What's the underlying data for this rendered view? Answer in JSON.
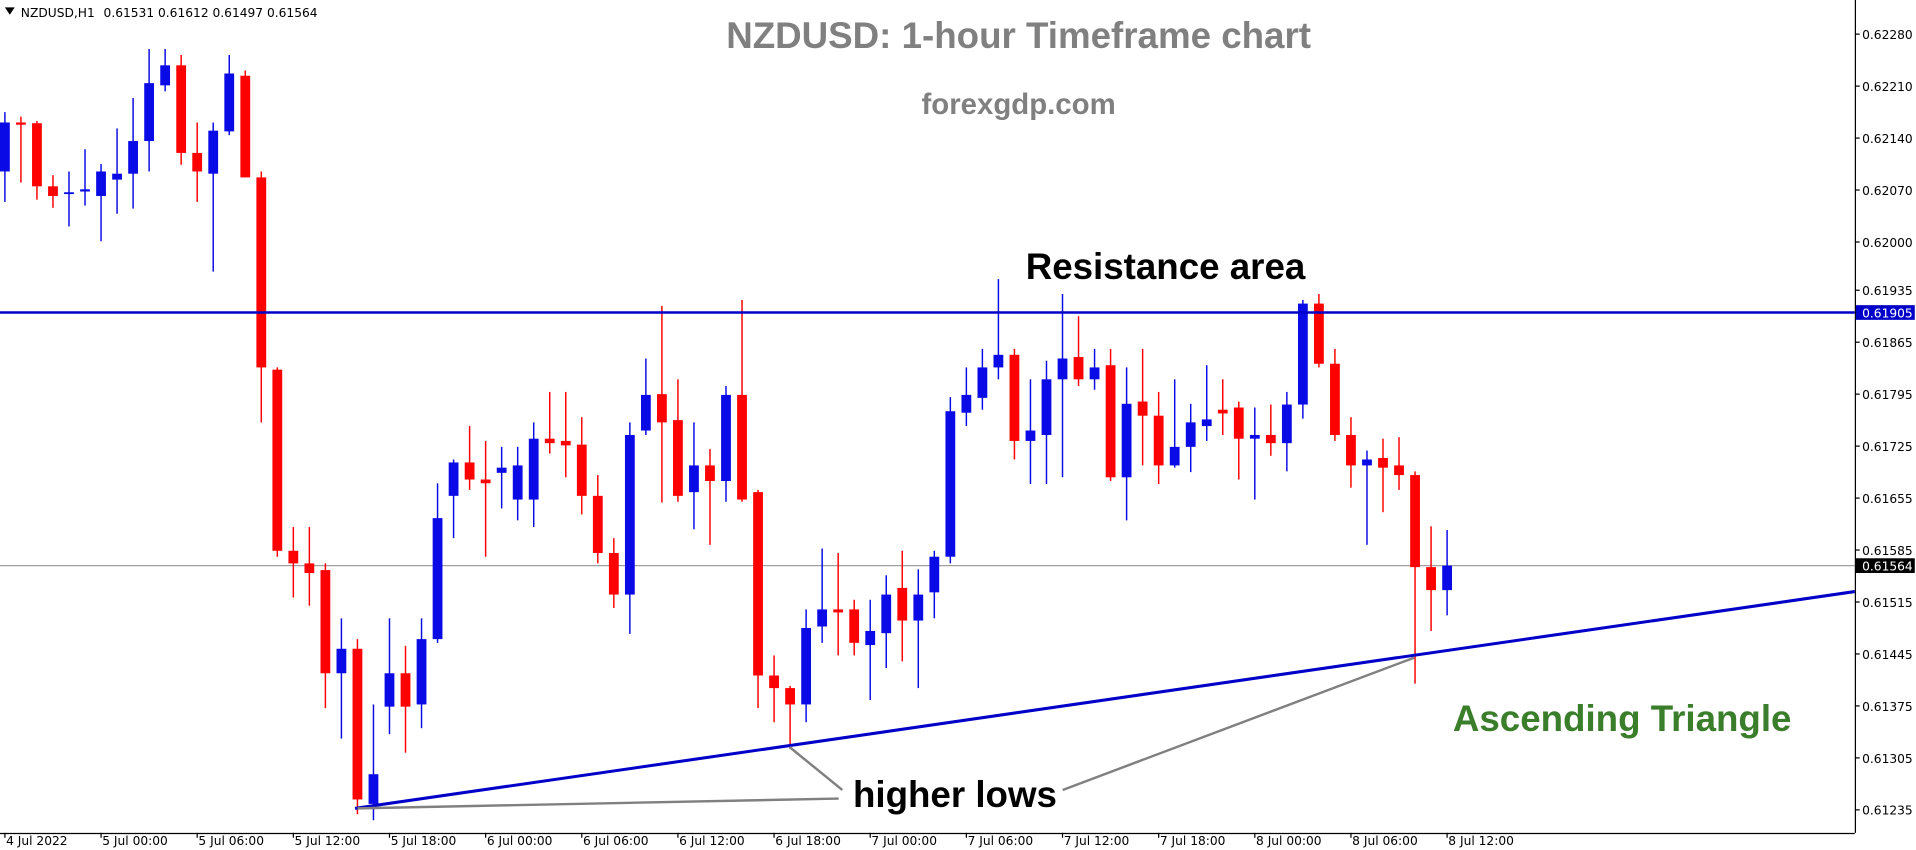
{
  "chart_data": {
    "type": "candlestick",
    "title": "NZDUSD: 1-hour Timeframe chart",
    "subtitle": "forexgdp.com",
    "symbol": "NZDUSD,H1",
    "annotations": {
      "resistance": "Resistance area",
      "lows": "higher lows",
      "pattern": "Ascending Triangle"
    },
    "up_color": "#0a0ae6",
    "down_color": "#ff0000",
    "resistance": 0.61905,
    "resistance_color": "#0000c8",
    "bid": 0.61564,
    "categories": [
      "4 Jul 2022",
      null,
      null,
      null,
      null,
      null,
      "5 Jul 00:00",
      null,
      null,
      null,
      null,
      null,
      "5 Jul 06:00",
      null,
      null,
      null,
      null,
      null,
      "5 Jul 12:00",
      null,
      null,
      null,
      null,
      null,
      "5 Jul 18:00",
      null,
      null,
      null,
      null,
      null,
      "6 Jul 00:00",
      null,
      null,
      null,
      null,
      null,
      "6 Jul 06:00",
      null,
      null,
      null,
      null,
      null,
      "6 Jul 12:00",
      null,
      null,
      null,
      null,
      null,
      "6 Jul 18:00",
      null,
      null,
      null,
      null,
      null,
      "7 Jul 00:00",
      null,
      null,
      null,
      null,
      null,
      "7 Jul 06:00",
      null,
      null,
      null,
      null,
      null,
      "7 Jul 12:00",
      null,
      null,
      null,
      null,
      null,
      "7 Jul 18:00",
      null,
      null,
      null,
      null,
      null,
      "8 Jul 00:00",
      null,
      null,
      null,
      null,
      null,
      "8 Jul 06:00",
      null,
      null,
      null,
      null,
      null,
      "8 Jul 12:00"
    ],
    "open": [
      0.62095,
      0.62161,
      0.6216,
      0.62075,
      0.62065,
      0.62068,
      0.62062,
      0.62084,
      0.62092,
      0.62136,
      0.62211,
      0.62238,
      0.6212,
      0.62092,
      0.62149,
      0.62224,
      0.62087,
      0.61828,
      0.61584,
      0.61567,
      0.61558,
      0.61419,
      0.61452,
      0.61243,
      0.61374,
      0.61419,
      0.61377,
      0.61465,
      0.61658,
      0.61703,
      0.6168,
      0.61689,
      0.61653,
      0.61653,
      0.61735,
      0.61732,
      0.61727,
      0.61658,
      0.61581,
      0.61525,
      0.61746,
      0.61795,
      0.6176,
      0.61663,
      0.61699,
      0.61678,
      0.61794,
      0.61663,
      0.61416,
      0.61399,
      0.61377,
      0.61482,
      0.61505,
      0.61505,
      0.61457,
      0.61473,
      0.61534,
      0.6149,
      0.61528,
      0.61576,
      0.6177,
      0.6179,
      0.61831,
      0.61848,
      0.61732,
      0.6174,
      0.61815,
      0.61845,
      0.61815,
      0.61834,
      0.61683,
      0.61785,
      0.61766,
      0.61699,
      0.61724,
      0.61752,
      0.61774,
      0.61777,
      0.61735,
      0.6174,
      0.61729,
      0.61781,
      0.61917,
      0.61836,
      0.6174,
      0.61699,
      0.61709,
      0.61699,
      0.61686,
      0.61562,
      0.61531
    ],
    "high": [
      0.62175,
      0.62169,
      0.62163,
      0.6209,
      0.62095,
      0.62125,
      0.62105,
      0.62153,
      0.62194,
      0.6226,
      0.6226,
      0.62252,
      0.62161,
      0.62161,
      0.62252,
      0.62231,
      0.62095,
      0.61831,
      0.61616,
      0.61616,
      0.61567,
      0.61493,
      0.61465,
      0.61377,
      0.61493,
      0.61456,
      0.61493,
      0.61675,
      0.61707,
      0.61752,
      0.61732,
      0.61724,
      0.61724,
      0.61757,
      0.61798,
      0.61798,
      0.61764,
      0.61686,
      0.61601,
      0.61757,
      0.61843,
      0.61914,
      0.61815,
      0.61757,
      0.61721,
      0.61806,
      0.61922,
      0.61666,
      0.61443,
      0.61402,
      0.61505,
      0.61587,
      0.61581,
      0.61518,
      0.61518,
      0.61551,
      0.61584,
      0.61559,
      0.61584,
      0.61791,
      0.61831,
      0.61856,
      0.6195,
      0.61856,
      0.61815,
      0.6184,
      0.6193,
      0.619,
      0.61856,
      0.61856,
      0.61831,
      0.61856,
      0.61798,
      0.61815,
      0.61782,
      0.61834,
      0.61815,
      0.61785,
      0.61777,
      0.61781,
      0.61798,
      0.61922,
      0.6193,
      0.61856,
      0.61764,
      0.61719,
      0.61735,
      0.61737,
      0.61691,
      0.61617,
      0.61612
    ],
    "low": [
      0.62054,
      0.6208,
      0.62057,
      0.62046,
      0.62021,
      0.62049,
      0.62001,
      0.62038,
      0.62045,
      0.62095,
      0.62203,
      0.62104,
      0.62054,
      0.6196,
      0.62144,
      0.62087,
      0.61757,
      0.61576,
      0.61521,
      0.6151,
      0.61372,
      0.61331,
      0.61229,
      0.61221,
      0.61337,
      0.61312,
      0.61345,
      0.6146,
      0.61601,
      0.61666,
      0.61576,
      0.61641,
      0.61625,
      0.61616,
      0.61715,
      0.61683,
      0.61633,
      0.61567,
      0.61507,
      0.61472,
      0.6174,
      0.61649,
      0.6165,
      0.61613,
      0.61592,
      0.6165,
      0.6165,
      0.61372,
      0.61353,
      0.61317,
      0.61353,
      0.6146,
      0.61443,
      0.61443,
      0.61383,
      0.61426,
      0.61435,
      0.61399,
      0.61493,
      0.61567,
      0.61752,
      0.61774,
      0.61815,
      0.61707,
      0.61674,
      0.61674,
      0.61683,
      0.61806,
      0.61801,
      0.61678,
      0.61625,
      0.61699,
      0.61674,
      0.61696,
      0.6169,
      0.61732,
      0.6174,
      0.6168,
      0.61653,
      0.61712,
      0.61691,
      0.61762,
      0.61831,
      0.61732,
      0.61669,
      0.61592,
      0.61636,
      0.61666,
      0.61405,
      0.61476,
      0.61497
    ],
    "close": [
      0.62161,
      0.62158,
      0.62075,
      0.62062,
      0.62067,
      0.62071,
      0.62095,
      0.62092,
      0.62136,
      0.62214,
      0.62238,
      0.6212,
      0.62095,
      0.6215,
      0.62227,
      0.62087,
      0.61831,
      0.61584,
      0.61567,
      0.61554,
      0.61419,
      0.61452,
      0.61249,
      0.61283,
      0.61419,
      0.61374,
      0.61465,
      0.61628,
      0.61703,
      0.6168,
      0.61675,
      0.61696,
      0.61699,
      0.61735,
      0.61729,
      0.61726,
      0.61658,
      0.61581,
      0.61525,
      0.6174,
      0.61794,
      0.61757,
      0.61658,
      0.61699,
      0.61678,
      0.61794,
      0.61653,
      0.61416,
      0.61399,
      0.61377,
      0.6148,
      0.61505,
      0.61501,
      0.6146,
      0.61476,
      0.61525,
      0.6149,
      0.61525,
      0.61576,
      0.61772,
      0.61794,
      0.61831,
      0.61848,
      0.61732,
      0.61746,
      0.61815,
      0.61843,
      0.61815,
      0.61831,
      0.61683,
      0.61782,
      0.61766,
      0.61699,
      0.61724,
      0.61757,
      0.61761,
      0.61769,
      0.61735,
      0.6174,
      0.61729,
      0.61781,
      0.61917,
      0.61836,
      0.6174,
      0.61699,
      0.61707,
      0.61696,
      0.61686,
      0.61562,
      0.61531,
      0.61564
    ],
    "ylim": [
      0.61204,
      0.62326
    ],
    "yticks": [
      {
        "value": 0.6228,
        "label": "0.62280"
      },
      {
        "value": 0.6221,
        "label": "0.62210"
      },
      {
        "value": 0.6214,
        "label": "0.62140"
      },
      {
        "value": 0.6207,
        "label": "0.62070"
      },
      {
        "value": 0.62,
        "label": "0.62000"
      },
      0.61935,
      0.61865,
      0.61795,
      0.61725,
      0.61655,
      0.61585,
      0.61515,
      0.61445,
      0.61375,
      0.61305,
      0.61235
    ]
  }
}
